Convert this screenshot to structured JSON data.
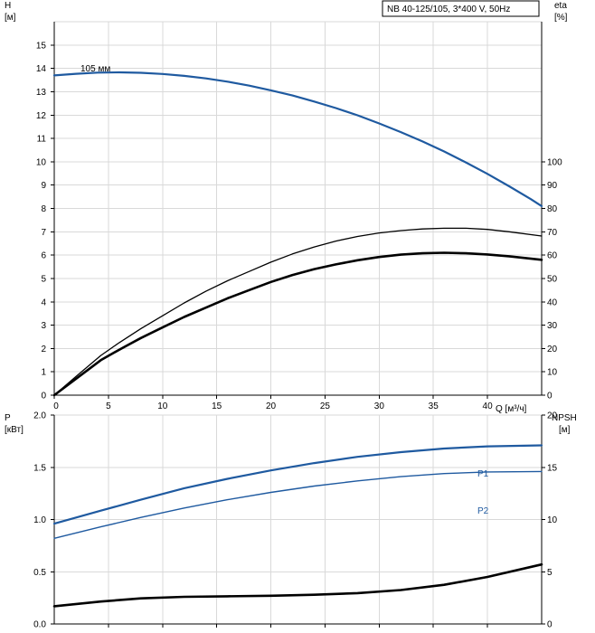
{
  "chart_data": [
    {
      "type": "line",
      "title": "NB 40-125/105, 3*400 V, 50Hz",
      "xlabel": "Q [м³/ч]",
      "xlim": [
        0,
        45
      ],
      "x_ticks": [
        0,
        5,
        10,
        15,
        20,
        25,
        30,
        35,
        40
      ],
      "left_axis": {
        "label": "H",
        "unit": "[м]",
        "lim": [
          0,
          16
        ],
        "ticks": [
          0,
          1,
          2,
          3,
          4,
          5,
          6,
          7,
          8,
          9,
          10,
          11,
          12,
          13,
          14,
          15
        ]
      },
      "right_axis": {
        "label": "eta",
        "unit": "[%]",
        "lim": [
          0,
          160
        ],
        "ticks": [
          0,
          10,
          20,
          30,
          40,
          50,
          60,
          70,
          80,
          90,
          100
        ]
      },
      "grid": true,
      "series": [
        {
          "name": "105 мм",
          "axis": "left",
          "color": "#1f5aa0",
          "x": [
            0,
            2,
            4,
            6,
            8,
            10,
            12,
            14,
            16,
            18,
            20,
            22,
            24,
            26,
            28,
            30,
            32,
            34,
            36,
            38,
            40,
            42,
            44,
            45
          ],
          "y": [
            13.7,
            13.77,
            13.82,
            13.83,
            13.81,
            13.76,
            13.68,
            13.57,
            13.43,
            13.26,
            13.06,
            12.84,
            12.58,
            12.3,
            11.99,
            11.64,
            11.27,
            10.87,
            10.44,
            9.97,
            9.48,
            8.95,
            8.4,
            8.1
          ]
        },
        {
          "axis": "right",
          "color": "#000000",
          "x": [
            0,
            2,
            4.3,
            6,
            8,
            10,
            12,
            14,
            16,
            18,
            20,
            22,
            24,
            26,
            28,
            30,
            32,
            34,
            36,
            38,
            40,
            42,
            45
          ],
          "y": [
            0,
            8,
            17,
            22.5,
            28.5,
            34,
            39.5,
            44.5,
            49,
            53,
            57,
            60.5,
            63.5,
            66,
            68,
            69.5,
            70.5,
            71.2,
            71.5,
            71.5,
            71,
            70,
            68.2
          ]
        },
        {
          "axis": "right",
          "color": "#000000",
          "x": [
            0,
            2,
            4.3,
            6,
            8,
            10,
            12,
            14,
            16,
            18,
            20,
            22,
            24,
            26,
            28,
            30,
            32,
            34,
            36,
            38,
            40,
            42,
            45
          ],
          "y": [
            0,
            7,
            15,
            19.5,
            24.5,
            29,
            33.5,
            37.5,
            41.5,
            45,
            48.5,
            51.5,
            54,
            56,
            57.8,
            59.2,
            60.2,
            60.8,
            61,
            60.8,
            60.3,
            59.5,
            58
          ]
        }
      ]
    },
    {
      "type": "line",
      "xlim": [
        0,
        45
      ],
      "left_axis": {
        "label": "P",
        "unit": "[кВт]",
        "lim": [
          0,
          2.0
        ],
        "ticks": [
          "0.0",
          "0.5",
          "1.0",
          "1.5",
          "2.0"
        ]
      },
      "right_axis": {
        "label": "NPSH",
        "unit": "[м]",
        "lim": [
          0,
          20
        ],
        "ticks": [
          "0",
          "5",
          "10",
          "15",
          "20"
        ]
      },
      "grid": true,
      "series": [
        {
          "name": "P1",
          "axis": "left",
          "color": "#1f5aa0",
          "x": [
            0,
            4.3,
            8,
            12,
            16,
            20,
            24,
            28,
            32,
            36,
            40,
            45
          ],
          "y": [
            0.96,
            1.085,
            1.19,
            1.3,
            1.39,
            1.47,
            1.54,
            1.6,
            1.645,
            1.68,
            1.7,
            1.71
          ]
        },
        {
          "name": "P2",
          "axis": "left",
          "color": "#1f5aa0",
          "x": [
            0,
            4.3,
            8,
            12,
            16,
            20,
            24,
            28,
            32,
            36,
            40,
            45
          ],
          "y": [
            0.82,
            0.93,
            1.02,
            1.11,
            1.19,
            1.26,
            1.32,
            1.37,
            1.41,
            1.44,
            1.455,
            1.46
          ]
        },
        {
          "axis": "right",
          "color": "#000000",
          "x": [
            0,
            4.3,
            8,
            12,
            16,
            20,
            24,
            28,
            32,
            36,
            40,
            45
          ],
          "y": [
            1.7,
            2.15,
            2.45,
            2.6,
            2.65,
            2.7,
            2.8,
            2.95,
            3.25,
            3.75,
            4.5,
            5.7
          ]
        }
      ]
    }
  ]
}
